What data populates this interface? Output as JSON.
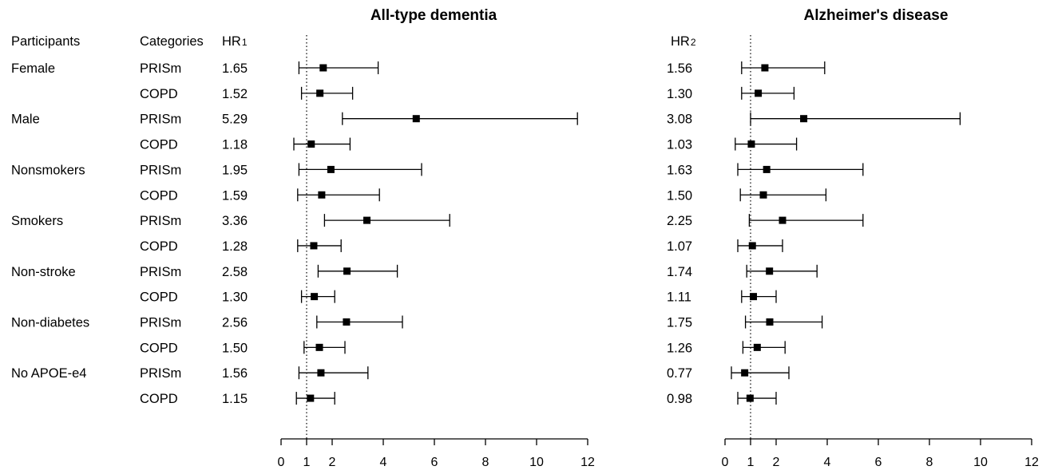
{
  "headers": {
    "participants": "Participants",
    "categories": "Categories",
    "hr1": "HR",
    "hr1_sub": "1",
    "hr2": "HR",
    "hr2_sub": "2"
  },
  "chart_data": [
    {
      "type": "forest",
      "title": "All-type dementia",
      "xlim": [
        0,
        12
      ],
      "xticks": [
        0,
        1,
        2,
        4,
        6,
        8,
        10,
        12
      ],
      "reference_line": 1,
      "rows": [
        {
          "participant": "Female",
          "category": "PRISm",
          "hr_label": "1.65",
          "hr": 1.65,
          "lower": 0.7,
          "upper": 3.8
        },
        {
          "participant": "",
          "category": "COPD",
          "hr_label": "1.52",
          "hr": 1.52,
          "lower": 0.8,
          "upper": 2.8
        },
        {
          "participant": "Male",
          "category": "PRISm",
          "hr_label": "5.29",
          "hr": 5.29,
          "lower": 2.4,
          "upper": 11.6
        },
        {
          "participant": "",
          "category": "COPD",
          "hr_label": "1.18",
          "hr": 1.18,
          "lower": 0.5,
          "upper": 2.7
        },
        {
          "participant": "Nonsmokers",
          "category": "PRISm",
          "hr_label": "1.95",
          "hr": 1.95,
          "lower": 0.7,
          "upper": 5.5
        },
        {
          "participant": "",
          "category": "COPD",
          "hr_label": "1.59",
          "hr": 1.59,
          "lower": 0.65,
          "upper": 3.85
        },
        {
          "participant": "Smokers",
          "category": "PRISm",
          "hr_label": "3.36",
          "hr": 3.36,
          "lower": 1.7,
          "upper": 6.6
        },
        {
          "participant": "",
          "category": "COPD",
          "hr_label": "1.28",
          "hr": 1.28,
          "lower": 0.65,
          "upper": 2.35
        },
        {
          "participant": "Non-stroke",
          "category": "PRISm",
          "hr_label": "2.58",
          "hr": 2.58,
          "lower": 1.45,
          "upper": 4.55
        },
        {
          "participant": "",
          "category": "COPD",
          "hr_label": "1.30",
          "hr": 1.3,
          "lower": 0.8,
          "upper": 2.1
        },
        {
          "participant": "Non-diabetes",
          "category": "PRISm",
          "hr_label": "2.56",
          "hr": 2.56,
          "lower": 1.4,
          "upper": 4.75
        },
        {
          "participant": "",
          "category": "COPD",
          "hr_label": "1.50",
          "hr": 1.5,
          "lower": 0.9,
          "upper": 2.5
        },
        {
          "participant": "No APOE-e4",
          "category": "PRISm",
          "hr_label": "1.56",
          "hr": 1.56,
          "lower": 0.7,
          "upper": 3.4
        },
        {
          "participant": "",
          "category": "COPD",
          "hr_label": "1.15",
          "hr": 1.15,
          "lower": 0.6,
          "upper": 2.1
        }
      ]
    },
    {
      "type": "forest",
      "title": "Alzheimer's disease",
      "xlim": [
        0,
        12
      ],
      "xticks": [
        0,
        1,
        2,
        4,
        6,
        8,
        10,
        12
      ],
      "reference_line": 1,
      "rows": [
        {
          "hr_label": "1.56",
          "hr": 1.56,
          "lower": 0.65,
          "upper": 3.9
        },
        {
          "hr_label": "1.30",
          "hr": 1.3,
          "lower": 0.65,
          "upper": 2.7
        },
        {
          "hr_label": "3.08",
          "hr": 3.08,
          "lower": 1.0,
          "upper": 9.2
        },
        {
          "hr_label": "1.03",
          "hr": 1.03,
          "lower": 0.4,
          "upper": 2.8
        },
        {
          "hr_label": "1.63",
          "hr": 1.63,
          "lower": 0.5,
          "upper": 5.4
        },
        {
          "hr_label": "1.50",
          "hr": 1.5,
          "lower": 0.6,
          "upper": 3.95
        },
        {
          "hr_label": "2.25",
          "hr": 2.25,
          "lower": 0.95,
          "upper": 5.4
        },
        {
          "hr_label": "1.07",
          "hr": 1.07,
          "lower": 0.5,
          "upper": 2.25
        },
        {
          "hr_label": "1.74",
          "hr": 1.74,
          "lower": 0.85,
          "upper": 3.6
        },
        {
          "hr_label": "1.11",
          "hr": 1.11,
          "lower": 0.65,
          "upper": 2.0
        },
        {
          "hr_label": "1.75",
          "hr": 1.75,
          "lower": 0.8,
          "upper": 3.8
        },
        {
          "hr_label": "1.26",
          "hr": 1.26,
          "lower": 0.7,
          "upper": 2.35
        },
        {
          "hr_label": "0.77",
          "hr": 0.77,
          "lower": 0.25,
          "upper": 2.5
        },
        {
          "hr_label": "0.98",
          "hr": 0.98,
          "lower": 0.5,
          "upper": 2.0
        }
      ]
    }
  ]
}
